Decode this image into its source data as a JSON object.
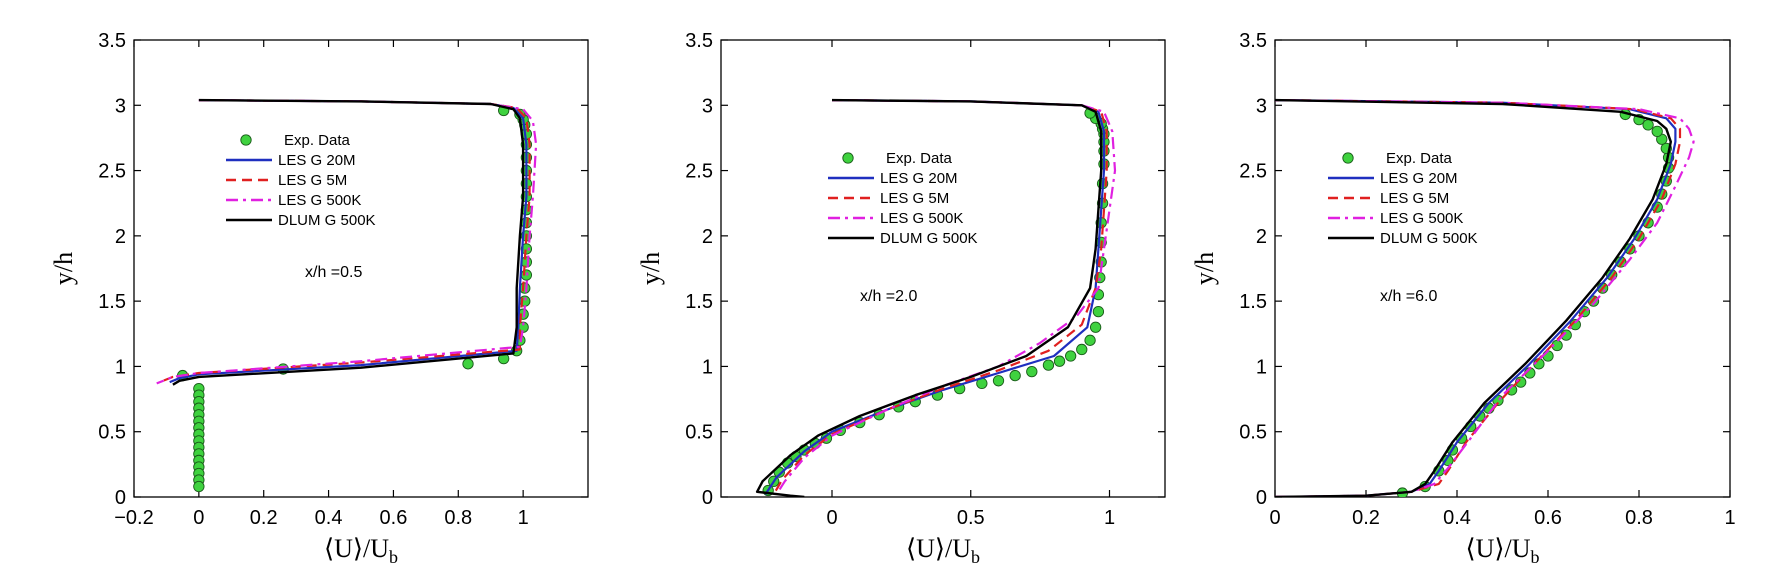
{
  "chart_data": [
    {
      "type": "line",
      "annotation": "x/h =0.5",
      "xlabel": "⟨U⟩/U",
      "xlabel_sub": "b",
      "ylabel": "y/h",
      "xlim": [
        -0.2,
        1.2
      ],
      "ylim": [
        0,
        3.5
      ],
      "xticks": [
        -0.2,
        0,
        0.2,
        0.4,
        0.6,
        0.8,
        1
      ],
      "xtick_labels": [
        "−0.2",
        "0",
        "0.2",
        "0.4",
        "0.6",
        "0.8",
        "1"
      ],
      "yticks": [
        0,
        0.5,
        1,
        1.5,
        2,
        2.5,
        3,
        3.5
      ],
      "ytick_labels": [
        "0",
        "0.5",
        "1",
        "1.5",
        "2",
        "2.5",
        "3",
        "3.5"
      ],
      "legend_position": "upper-left",
      "series": [
        {
          "name": "LES G 20M",
          "color": "#1f2fbf",
          "dash": "solid",
          "x": [
            0.0,
            0.5,
            0.9,
            0.97,
            1.0,
            1.01,
            1.01,
            1.0,
            0.99,
            0.985,
            0.98,
            0.5,
            0.0,
            -0.06,
            -0.09
          ],
          "y": [
            3.04,
            3.03,
            3.01,
            2.98,
            2.9,
            2.7,
            2.3,
            2.0,
            1.6,
            1.3,
            1.12,
            1.01,
            0.94,
            0.91,
            0.88
          ]
        },
        {
          "name": "LES G 5M",
          "color": "#e02020",
          "dash": "dashed",
          "x": [
            0.0,
            0.5,
            0.9,
            0.98,
            1.01,
            1.02,
            1.02,
            1.01,
            1.0,
            0.99,
            0.99,
            0.5,
            0.0,
            -0.08,
            -0.12
          ],
          "y": [
            3.04,
            3.03,
            3.01,
            2.98,
            2.9,
            2.7,
            2.3,
            2.0,
            1.6,
            1.3,
            1.13,
            1.03,
            0.95,
            0.92,
            0.88
          ]
        },
        {
          "name": "LES G 500K",
          "color": "#e020e0",
          "dash": "dashdot",
          "x": [
            0.0,
            0.5,
            0.9,
            1.0,
            1.03,
            1.04,
            1.03,
            1.02,
            1.01,
            1.0,
            0.99,
            0.5,
            0.0,
            -0.08,
            -0.13
          ],
          "y": [
            3.04,
            3.03,
            3.01,
            2.97,
            2.88,
            2.7,
            2.3,
            2.0,
            1.6,
            1.3,
            1.15,
            1.04,
            0.95,
            0.92,
            0.87
          ]
        },
        {
          "name": "DLUM G 500K",
          "color": "#000000",
          "dash": "solid",
          "x": [
            0.0,
            0.5,
            0.9,
            0.97,
            0.99,
            1.0,
            1.0,
            0.99,
            0.98,
            0.98,
            0.97,
            0.5,
            0.0,
            -0.06,
            -0.08
          ],
          "y": [
            3.04,
            3.03,
            3.01,
            2.97,
            2.9,
            2.7,
            2.3,
            2.0,
            1.6,
            1.3,
            1.1,
            0.99,
            0.92,
            0.89,
            0.86
          ]
        }
      ],
      "exp_data": {
        "name": "Exp. Data",
        "color": "#3fd23f",
        "x": [
          -0.05,
          0.0,
          0.0,
          0.0,
          0.0,
          0.0,
          0.0,
          0.0,
          0.0,
          0.0,
          0.0,
          0.0,
          0.0,
          0.0,
          0.0,
          0.0,
          0.0,
          0.26,
          0.83,
          0.94,
          0.98,
          0.99,
          1.0,
          1.0,
          1.005,
          1.005,
          1.01,
          1.01,
          1.01,
          1.01,
          1.01,
          1.01,
          1.01,
          1.01,
          1.01,
          1.01,
          1.01,
          1.01,
          1.005,
          1.0,
          0.99,
          0.94
        ],
        "y": [
          0.93,
          0.83,
          0.78,
          0.73,
          0.68,
          0.63,
          0.58,
          0.53,
          0.48,
          0.43,
          0.38,
          0.33,
          0.28,
          0.23,
          0.18,
          0.13,
          0.08,
          0.98,
          1.02,
          1.06,
          1.12,
          1.2,
          1.3,
          1.4,
          1.5,
          1.6,
          1.7,
          1.8,
          1.9,
          2.0,
          2.1,
          2.2,
          2.3,
          2.4,
          2.5,
          2.6,
          2.7,
          2.78,
          2.85,
          2.89,
          2.93,
          2.96
        ]
      }
    },
    {
      "type": "line",
      "annotation": "x/h =2.0",
      "xlabel": "⟨U⟩/U",
      "xlabel_sub": "b",
      "ylabel": "y/h",
      "xlim": [
        -0.4,
        1.2
      ],
      "ylim": [
        0,
        3.5
      ],
      "xticks": [
        0,
        0.5,
        1
      ],
      "xtick_labels": [
        "0",
        "0.5",
        "1"
      ],
      "yticks": [
        0,
        0.5,
        1,
        1.5,
        2,
        2.5,
        3,
        3.5
      ],
      "ytick_labels": [
        "0",
        "0.5",
        "1",
        "1.5",
        "2",
        "2.5",
        "3",
        "3.5"
      ],
      "legend_position": "upper-left",
      "series": [
        {
          "name": "LES G 20M",
          "color": "#1f2fbf",
          "dash": "solid",
          "x": [
            0.0,
            0.5,
            0.9,
            0.96,
            0.98,
            0.98,
            0.97,
            0.96,
            0.95,
            0.92,
            0.8,
            0.6,
            0.4,
            0.2,
            0.0,
            -0.1,
            -0.2,
            -0.24
          ],
          "y": [
            3.04,
            3.03,
            3.0,
            2.95,
            2.8,
            2.5,
            2.2,
            1.9,
            1.6,
            1.3,
            1.08,
            0.95,
            0.82,
            0.67,
            0.5,
            0.35,
            0.15,
            0.02
          ]
        },
        {
          "name": "LES G 5M",
          "color": "#e02020",
          "dash": "dashed",
          "x": [
            0.0,
            0.5,
            0.9,
            0.97,
            0.99,
            0.99,
            0.98,
            0.97,
            0.95,
            0.9,
            0.78,
            0.6,
            0.4,
            0.2,
            0.0,
            -0.1,
            -0.18,
            -0.21
          ],
          "y": [
            3.04,
            3.03,
            3.0,
            2.95,
            2.8,
            2.5,
            2.2,
            1.9,
            1.6,
            1.32,
            1.12,
            0.97,
            0.83,
            0.67,
            0.48,
            0.32,
            0.13,
            0.02
          ]
        },
        {
          "name": "LES G 500K",
          "color": "#e020e0",
          "dash": "dashdot",
          "x": [
            0.0,
            0.5,
            0.9,
            0.98,
            1.01,
            1.02,
            1.0,
            0.98,
            0.96,
            0.88,
            0.75,
            0.6,
            0.4,
            0.2,
            0.0,
            -0.1,
            -0.17,
            -0.2
          ],
          "y": [
            3.04,
            3.03,
            3.0,
            2.95,
            2.8,
            2.5,
            2.2,
            1.9,
            1.6,
            1.38,
            1.18,
            1.0,
            0.85,
            0.67,
            0.47,
            0.3,
            0.12,
            0.02
          ]
        },
        {
          "name": "DLUM G 500K",
          "color": "#000000",
          "dash": "solid",
          "x": [
            0.0,
            0.5,
            0.9,
            0.95,
            0.97,
            0.97,
            0.96,
            0.95,
            0.93,
            0.85,
            0.7,
            0.5,
            0.3,
            0.1,
            -0.05,
            -0.15,
            -0.25,
            -0.27,
            -0.15,
            -0.1
          ],
          "y": [
            3.04,
            3.03,
            3.0,
            2.95,
            2.8,
            2.5,
            2.2,
            1.9,
            1.6,
            1.3,
            1.08,
            0.92,
            0.78,
            0.62,
            0.47,
            0.32,
            0.12,
            0.04,
            0.01,
            0.0
          ]
        }
      ],
      "exp_data": {
        "name": "Exp. Data",
        "color": "#3fd23f",
        "x": [
          -0.23,
          -0.21,
          -0.19,
          -0.16,
          -0.13,
          -0.1,
          -0.06,
          -0.02,
          0.03,
          0.1,
          0.17,
          0.24,
          0.3,
          0.38,
          0.46,
          0.54,
          0.6,
          0.66,
          0.72,
          0.78,
          0.82,
          0.86,
          0.9,
          0.93,
          0.95,
          0.96,
          0.96,
          0.965,
          0.97,
          0.97,
          0.97,
          0.975,
          0.975,
          0.98,
          0.98,
          0.98,
          0.98,
          0.975,
          0.97,
          0.95,
          0.93
        ],
        "y": [
          0.05,
          0.12,
          0.19,
          0.26,
          0.31,
          0.36,
          0.41,
          0.45,
          0.51,
          0.57,
          0.63,
          0.69,
          0.73,
          0.78,
          0.83,
          0.87,
          0.89,
          0.93,
          0.96,
          1.01,
          1.04,
          1.08,
          1.13,
          1.2,
          1.3,
          1.42,
          1.55,
          1.68,
          1.8,
          1.95,
          2.1,
          2.25,
          2.4,
          2.55,
          2.65,
          2.72,
          2.78,
          2.82,
          2.86,
          2.9,
          2.94
        ]
      }
    },
    {
      "type": "line",
      "annotation": "x/h =6.0",
      "xlabel": "⟨U⟩/U",
      "xlabel_sub": "b",
      "ylabel": "y/h",
      "xlim": [
        0,
        1
      ],
      "ylim": [
        0,
        3.5
      ],
      "xticks": [
        0,
        0.2,
        0.4,
        0.6,
        0.8,
        1
      ],
      "xtick_labels": [
        "0",
        "0.2",
        "0.4",
        "0.6",
        "0.8",
        "1"
      ],
      "yticks": [
        0,
        0.5,
        1,
        1.5,
        2,
        2.5,
        3,
        3.5
      ],
      "ytick_labels": [
        "0",
        "0.5",
        "1",
        "1.5",
        "2",
        "2.5",
        "3",
        "3.5"
      ],
      "legend_position": "upper-left",
      "series": [
        {
          "name": "LES G 20M",
          "color": "#1f2fbf",
          "dash": "solid",
          "x": [
            0.0,
            0.2,
            0.3,
            0.34,
            0.36,
            0.4,
            0.47,
            0.56,
            0.65,
            0.73,
            0.79,
            0.84,
            0.87,
            0.88,
            0.88,
            0.86,
            0.78,
            0.5,
            0.0
          ],
          "y": [
            0.0,
            0.01,
            0.04,
            0.1,
            0.2,
            0.42,
            0.72,
            1.02,
            1.35,
            1.68,
            1.98,
            2.28,
            2.55,
            2.72,
            2.82,
            2.9,
            2.97,
            3.02,
            3.04
          ]
        },
        {
          "name": "LES G 5M",
          "color": "#e02020",
          "dash": "dashed",
          "x": [
            0.0,
            0.2,
            0.3,
            0.36,
            0.38,
            0.42,
            0.49,
            0.57,
            0.66,
            0.74,
            0.8,
            0.85,
            0.88,
            0.89,
            0.89,
            0.87,
            0.79,
            0.5,
            0.0
          ],
          "y": [
            0.0,
            0.01,
            0.04,
            0.1,
            0.2,
            0.42,
            0.72,
            1.02,
            1.35,
            1.68,
            1.98,
            2.28,
            2.55,
            2.72,
            2.82,
            2.9,
            2.97,
            3.02,
            3.04
          ]
        },
        {
          "name": "LES G 500K",
          "color": "#e020e0",
          "dash": "dashdot",
          "x": [
            0.0,
            0.2,
            0.3,
            0.35,
            0.38,
            0.43,
            0.5,
            0.6,
            0.7,
            0.78,
            0.84,
            0.88,
            0.91,
            0.92,
            0.91,
            0.89,
            0.8,
            0.5,
            0.0
          ],
          "y": [
            0.0,
            0.01,
            0.04,
            0.1,
            0.22,
            0.45,
            0.78,
            1.12,
            1.48,
            1.82,
            2.1,
            2.38,
            2.6,
            2.72,
            2.82,
            2.9,
            2.97,
            3.02,
            3.04
          ]
        },
        {
          "name": "DLUM G 500K",
          "color": "#000000",
          "dash": "solid",
          "x": [
            0.0,
            0.2,
            0.3,
            0.33,
            0.35,
            0.39,
            0.46,
            0.55,
            0.64,
            0.72,
            0.78,
            0.83,
            0.86,
            0.87,
            0.86,
            0.84,
            0.76,
            0.5,
            0.0
          ],
          "y": [
            0.0,
            0.01,
            0.04,
            0.1,
            0.2,
            0.42,
            0.72,
            1.02,
            1.35,
            1.68,
            1.98,
            2.28,
            2.55,
            2.72,
            2.82,
            2.88,
            2.95,
            3.01,
            3.04
          ]
        },
        {
          "name": "DLUM G 500K",
          "color": "#000000",
          "dash": "solid",
          "hidden_from_legend": true,
          "x": [],
          "y": []
        }
      ],
      "exp_data": {
        "name": "Exp. Data",
        "color": "#3fd23f",
        "x": [
          0.28,
          0.33,
          0.36,
          0.38,
          0.39,
          0.41,
          0.43,
          0.45,
          0.47,
          0.49,
          0.52,
          0.54,
          0.56,
          0.58,
          0.6,
          0.62,
          0.64,
          0.66,
          0.68,
          0.7,
          0.72,
          0.74,
          0.76,
          0.78,
          0.8,
          0.82,
          0.84,
          0.85,
          0.86,
          0.865,
          0.865,
          0.86,
          0.85,
          0.84,
          0.82,
          0.8,
          0.77
        ],
        "y": [
          0.03,
          0.08,
          0.2,
          0.28,
          0.36,
          0.45,
          0.54,
          0.62,
          0.68,
          0.74,
          0.82,
          0.88,
          0.95,
          1.02,
          1.08,
          1.16,
          1.24,
          1.32,
          1.42,
          1.5,
          1.6,
          1.7,
          1.8,
          1.9,
          2.0,
          2.1,
          2.22,
          2.32,
          2.42,
          2.52,
          2.6,
          2.67,
          2.74,
          2.8,
          2.85,
          2.89,
          2.93
        ]
      }
    }
  ]
}
